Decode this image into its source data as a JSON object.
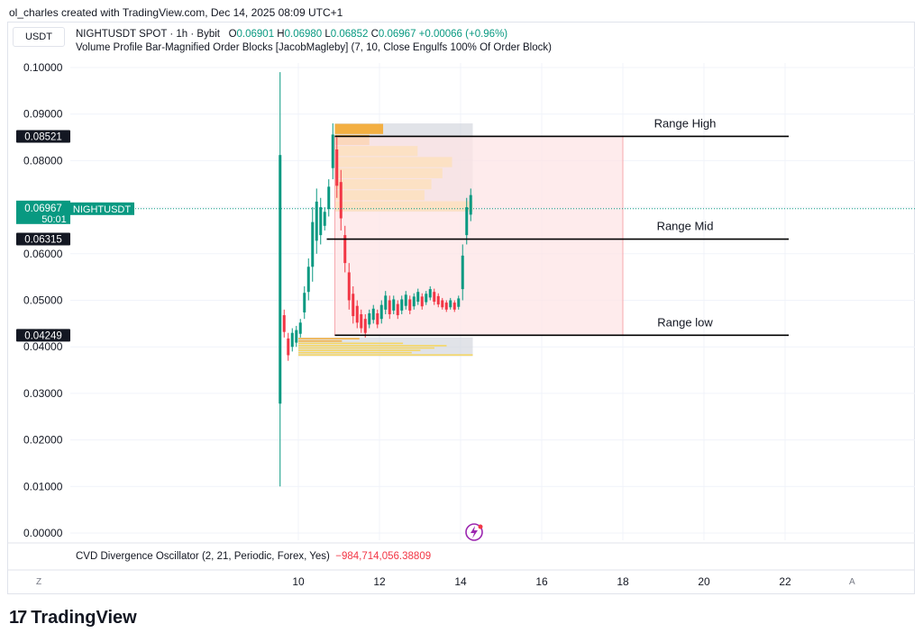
{
  "header": {
    "note": "ol_charles created with TradingView.com, Dec 14, 2025 08:09 UTC+1"
  },
  "symbol_box": "USDT",
  "legend": {
    "symbol": "NIGHTUSDT SPOT · 1h · Bybit",
    "o_label": "O",
    "o": "0.06901",
    "h_label": "H",
    "h": "0.06980",
    "l_label": "L",
    "l": "0.06852",
    "c_label": "C",
    "c": "0.06967",
    "change": "+0.00066 (+0.96%)",
    "indicator": "Volume Profile Bar-Magnified Order Blocks [JacobMagleby] (7, 10, Close Engulfs 100% Of Order Block)"
  },
  "oscillator": {
    "label": "CVD Divergence Oscillator (2, 21, Periodic, Forex, Yes)",
    "value": "−984,714,056.38809"
  },
  "bottom_bar": {
    "left": "Z",
    "right": "A"
  },
  "branding": {
    "logo_mark": "17",
    "name": "TradingView"
  },
  "colors": {
    "up": "#089981",
    "down": "#f23645",
    "zone_fill": "#fde4e6",
    "zone_border": "#f7a8ae",
    "profile_orange": "#f6a623",
    "profile_yellow": "#f9d44a",
    "profile_bg": "#d1d4dc"
  },
  "chart_data": {
    "type": "candlestick",
    "title": "NIGHTUSDT SPOT · 1h · Bybit",
    "xlabel": "",
    "ylabel": "",
    "ylim": [
      0.0,
      0.1
    ],
    "y_ticks": [
      "0.10000",
      "0.09000",
      "0.08000",
      "0.07000",
      "0.06000",
      "0.05000",
      "0.04000",
      "0.03000",
      "0.02000",
      "0.01000",
      "0.00000"
    ],
    "x_ticks": [
      "10",
      "12",
      "14",
      "16",
      "18",
      "20",
      "22"
    ],
    "xlim": [
      8.5,
      22.0
    ],
    "grid": true,
    "price_labels": [
      {
        "text": "0.08521",
        "value": 0.08521
      },
      {
        "text": "0.06315",
        "value": 0.06315
      },
      {
        "text": "0.04249",
        "value": 0.04249
      }
    ],
    "current_price": {
      "text": "0.06967",
      "countdown": "50:01",
      "symbol": "NIGHTUSDT",
      "value": 0.06967
    },
    "levels": [
      {
        "name": "Range High",
        "value": 0.08521
      },
      {
        "name": "Range Mid",
        "value": 0.06315
      },
      {
        "name": "Range low",
        "value": 0.04249
      }
    ],
    "range_box": {
      "x_start": 10.9,
      "x_end": 18.0,
      "y_low": 0.04249,
      "y_high": 0.08521
    },
    "candles_path": [
      [
        9.55,
        0.01,
        0.099
      ],
      [
        9.65,
        0.042,
        0.048
      ],
      [
        9.75,
        0.037,
        0.043
      ],
      [
        9.85,
        0.039,
        0.044
      ],
      [
        9.95,
        0.04,
        0.0445
      ],
      [
        10.05,
        0.042,
        0.046
      ],
      [
        10.15,
        0.046,
        0.053
      ],
      [
        10.25,
        0.05,
        0.059
      ],
      [
        10.35,
        0.054,
        0.07
      ],
      [
        10.45,
        0.06,
        0.074
      ],
      [
        10.55,
        0.062,
        0.072
      ],
      [
        10.65,
        0.065,
        0.07
      ],
      [
        10.75,
        0.068,
        0.076
      ],
      [
        10.85,
        0.076,
        0.088
      ],
      [
        10.95,
        0.072,
        0.085
      ],
      [
        11.05,
        0.065,
        0.078
      ],
      [
        11.15,
        0.056,
        0.066
      ],
      [
        11.25,
        0.048,
        0.058
      ],
      [
        11.35,
        0.045,
        0.053
      ],
      [
        11.45,
        0.044,
        0.05
      ],
      [
        11.55,
        0.043,
        0.048
      ],
      [
        11.65,
        0.042,
        0.047
      ],
      [
        11.75,
        0.044,
        0.048
      ],
      [
        11.85,
        0.045,
        0.049
      ],
      [
        11.95,
        0.044,
        0.048
      ],
      [
        12.05,
        0.045,
        0.05
      ],
      [
        12.15,
        0.047,
        0.052
      ],
      [
        12.25,
        0.046,
        0.051
      ],
      [
        12.35,
        0.047,
        0.051
      ],
      [
        12.45,
        0.046,
        0.05
      ],
      [
        12.55,
        0.047,
        0.051
      ],
      [
        12.65,
        0.048,
        0.052
      ],
      [
        12.75,
        0.047,
        0.051
      ],
      [
        12.85,
        0.048,
        0.0515
      ],
      [
        12.95,
        0.049,
        0.0525
      ],
      [
        13.05,
        0.048,
        0.0515
      ],
      [
        13.15,
        0.049,
        0.052
      ],
      [
        13.25,
        0.05,
        0.053
      ],
      [
        13.35,
        0.049,
        0.0525
      ],
      [
        13.45,
        0.0485,
        0.0515
      ],
      [
        13.55,
        0.048,
        0.0505
      ],
      [
        13.65,
        0.0475,
        0.05
      ],
      [
        13.75,
        0.048,
        0.0505
      ],
      [
        13.85,
        0.0475,
        0.05
      ],
      [
        13.95,
        0.048,
        0.051
      ],
      [
        14.05,
        0.05,
        0.062
      ],
      [
        14.15,
        0.062,
        0.072
      ],
      [
        14.25,
        0.067,
        0.074
      ]
    ],
    "order_blocks": [
      {
        "side": "upper",
        "y_low": 0.069,
        "y_high": 0.088,
        "x_start": 10.9,
        "x_end": 14.3
      },
      {
        "side": "lower",
        "y_low": 0.038,
        "y_high": 0.042,
        "x_start": 10.0,
        "x_end": 14.3
      }
    ]
  }
}
